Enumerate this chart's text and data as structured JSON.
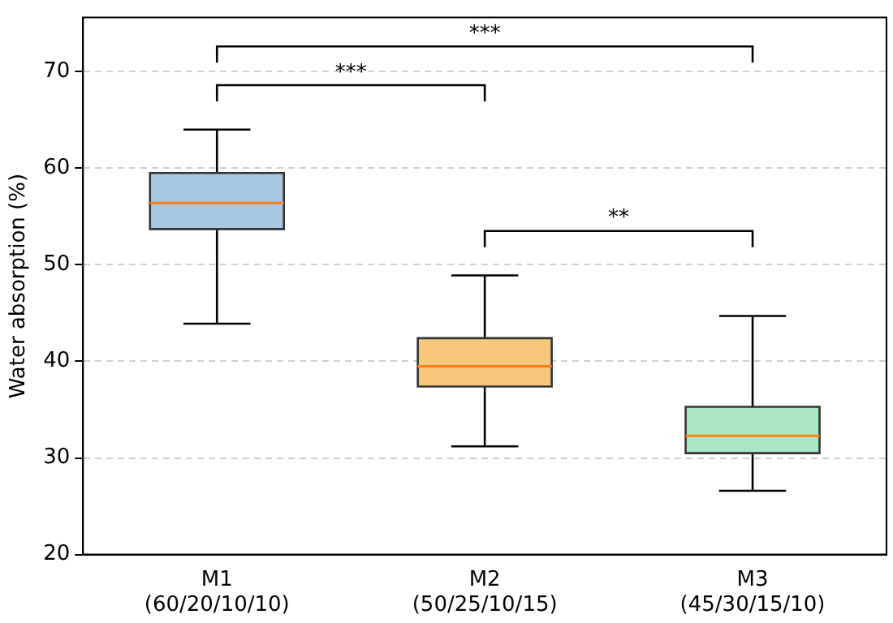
{
  "chart_data": {
    "type": "box",
    "ylabel": "Water absorption (%)",
    "categories": [
      "M1\n(60/20/10/10)",
      "M2\n(50/25/10/15)",
      "M3\n(45/30/15/10)"
    ],
    "colors": [
      "#a6c8e2",
      "#f7c77c",
      "#a8e6c4"
    ],
    "boxes": [
      {
        "low": 43.9,
        "q1": 53.7,
        "median": 56.4,
        "q3": 59.5,
        "high": 64.0
      },
      {
        "low": 31.2,
        "q1": 37.4,
        "median": 39.5,
        "q3": 42.4,
        "high": 48.9
      },
      {
        "low": 26.6,
        "q1": 30.5,
        "median": 32.3,
        "q3": 35.3,
        "high": 44.7
      }
    ],
    "ylim": [
      20,
      75.6
    ],
    "yticks": [
      20,
      30,
      40,
      50,
      60,
      70
    ],
    "grid": "y",
    "annotations": [
      "***",
      "***",
      "**"
    ]
  }
}
